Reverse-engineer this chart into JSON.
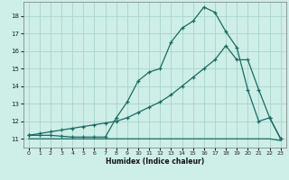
{
  "xlabel": "Humidex (Indice chaleur)",
  "xlim": [
    -0.5,
    23.5
  ],
  "ylim": [
    10.5,
    18.8
  ],
  "yticks": [
    11,
    12,
    13,
    14,
    15,
    16,
    17,
    18
  ],
  "xticks": [
    0,
    1,
    2,
    3,
    4,
    5,
    6,
    7,
    8,
    9,
    10,
    11,
    12,
    13,
    14,
    15,
    16,
    17,
    18,
    19,
    20,
    21,
    22,
    23
  ],
  "bg_color": "#ceeee8",
  "grid_color": "#aad4cc",
  "line_color": "#1a6b60",
  "line1_x": [
    0,
    1,
    2,
    3,
    4,
    5,
    6,
    7,
    8,
    9,
    10,
    11,
    12,
    13,
    14,
    15,
    16,
    17,
    18,
    19,
    20,
    21,
    22,
    23
  ],
  "line1_y": [
    11.2,
    11.2,
    11.2,
    11.15,
    11.1,
    11.1,
    11.1,
    11.1,
    12.2,
    13.1,
    14.3,
    14.8,
    15.0,
    16.5,
    17.3,
    17.7,
    18.5,
    18.2,
    17.1,
    16.2,
    13.8,
    12.0,
    12.2,
    11.0
  ],
  "line2_x": [
    0,
    1,
    2,
    3,
    4,
    5,
    6,
    7,
    8,
    9,
    10,
    11,
    12,
    13,
    14,
    15,
    16,
    17,
    18,
    19,
    20,
    21,
    22,
    23
  ],
  "line2_y": [
    11.2,
    11.3,
    11.4,
    11.5,
    11.6,
    11.7,
    11.8,
    11.9,
    12.0,
    12.2,
    12.5,
    12.8,
    13.1,
    13.5,
    14.0,
    14.5,
    15.0,
    15.5,
    16.3,
    15.5,
    15.5,
    13.8,
    12.2,
    11.0
  ],
  "line3_x": [
    0,
    1,
    2,
    3,
    4,
    5,
    6,
    7,
    8,
    9,
    10,
    11,
    12,
    13,
    14,
    15,
    16,
    17,
    18,
    19,
    20,
    21,
    22,
    23
  ],
  "line3_y": [
    11.0,
    11.0,
    11.0,
    11.0,
    11.0,
    11.0,
    11.0,
    11.0,
    11.0,
    11.0,
    11.0,
    11.0,
    11.0,
    11.0,
    11.0,
    11.0,
    11.0,
    11.0,
    11.0,
    11.0,
    11.0,
    11.0,
    11.0,
    10.9
  ]
}
